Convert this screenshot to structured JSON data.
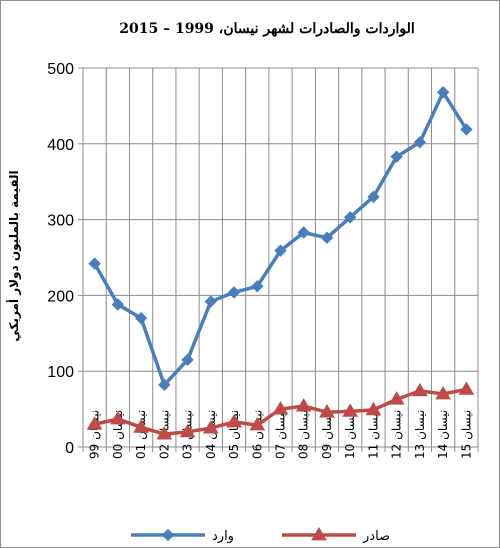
{
  "chart_data": {
    "type": "line",
    "title": "الواردات والصادرات لشهر نيسان، 1999 – 2015",
    "ylabel": "القيمة بالمليون دولار أمريكي",
    "xlabel": "",
    "categories": [
      "نيسان 99",
      "نيسان 00",
      "نيسان 01",
      "نيسان 02",
      "نيسان 03",
      "نيسان 04",
      "نيسان 05",
      "نيسان 06",
      "نيسان 07",
      "نيسان 08",
      "نيسان 09",
      "نيسان 10",
      "نيسان 11",
      "نيسان 12",
      "نيسان 13",
      "نيسان 14",
      "نيسان 15"
    ],
    "ylim": [
      0,
      500
    ],
    "yticks": [
      "0",
      "100",
      "200",
      "300",
      "400",
      "500"
    ],
    "grid": true,
    "legend_position": "bottom",
    "series": [
      {
        "name": "وارد",
        "color": "#4a7ebb",
        "marker": "diamond",
        "values": [
          242,
          188,
          170,
          82,
          115,
          192,
          204,
          212,
          259,
          283,
          276,
          303,
          330,
          383,
          402,
          468,
          419
        ]
      },
      {
        "name": "صادر",
        "color": "#be4b48",
        "marker": "triangle",
        "values": [
          30,
          37,
          26,
          17,
          20,
          25,
          33,
          29,
          50,
          54,
          46,
          47,
          49,
          63,
          74,
          70,
          76
        ]
      }
    ]
  }
}
